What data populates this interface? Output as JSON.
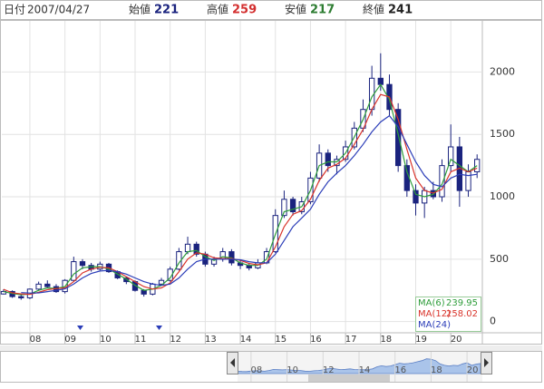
{
  "chart_data": {
    "type": "candlestick",
    "header": {
      "date_label": "日付",
      "date": "2007/04/27",
      "open_label": "始値",
      "high_label": "高値",
      "low_label": "安値",
      "close_label": "終値"
    },
    "x": [
      2007.25,
      2007.5,
      2007.75,
      2008,
      2008.25,
      2008.5,
      2008.75,
      2009,
      2009.25,
      2009.5,
      2009.75,
      2010,
      2010.25,
      2010.5,
      2010.75,
      2011,
      2011.25,
      2011.5,
      2011.75,
      2012,
      2012.25,
      2012.5,
      2012.75,
      2013,
      2013.25,
      2013.5,
      2013.75,
      2014,
      2014.25,
      2014.5,
      2014.75,
      2015,
      2015.25,
      2015.5,
      2015.75,
      2016,
      2016.25,
      2016.5,
      2016.75,
      2017,
      2017.25,
      2017.5,
      2017.75,
      2018,
      2018.25,
      2018.5,
      2018.75,
      2019,
      2019.25,
      2019.5,
      2019.75,
      2020,
      2020.25,
      2020.5,
      2020.75
    ],
    "open": [
      221,
      241,
      200,
      190,
      260,
      300,
      280,
      240,
      330,
      480,
      450,
      420,
      460,
      400,
      350,
      320,
      250,
      220,
      300,
      330,
      420,
      560,
      620,
      540,
      460,
      500,
      560,
      470,
      450,
      430,
      470,
      560,
      850,
      980,
      880,
      960,
      1150,
      1350,
      1250,
      1300,
      1400,
      1550,
      1700,
      1950,
      1900,
      1700,
      1250,
      1050,
      950,
      1050,
      1000,
      1250,
      1400,
      1050,
      1200
    ],
    "high": [
      259,
      250,
      215,
      265,
      320,
      330,
      300,
      340,
      520,
      500,
      470,
      480,
      470,
      410,
      360,
      330,
      260,
      310,
      350,
      440,
      590,
      680,
      640,
      560,
      520,
      590,
      580,
      490,
      470,
      500,
      590,
      900,
      1050,
      1000,
      1000,
      1200,
      1420,
      1380,
      1330,
      1450,
      1600,
      1780,
      2050,
      2150,
      1980,
      1750,
      1300,
      1100,
      1080,
      1120,
      1300,
      1580,
      1480,
      1260,
      1340
    ],
    "low": [
      217,
      190,
      175,
      180,
      250,
      270,
      230,
      225,
      320,
      420,
      400,
      410,
      390,
      340,
      300,
      240,
      200,
      210,
      290,
      320,
      410,
      540,
      520,
      440,
      440,
      480,
      450,
      420,
      410,
      420,
      460,
      550,
      830,
      850,
      860,
      940,
      1120,
      1200,
      1180,
      1280,
      1380,
      1520,
      1650,
      1850,
      1650,
      1200,
      1000,
      850,
      830,
      980,
      960,
      1200,
      920,
      1000,
      1150
    ],
    "close": [
      241,
      200,
      190,
      260,
      300,
      280,
      240,
      330,
      480,
      450,
      420,
      460,
      400,
      350,
      320,
      250,
      220,
      300,
      330,
      420,
      560,
      620,
      540,
      460,
      500,
      560,
      470,
      450,
      430,
      470,
      560,
      850,
      980,
      880,
      960,
      1150,
      1350,
      1250,
      1300,
      1400,
      1550,
      1700,
      1950,
      1900,
      1700,
      1250,
      1050,
      950,
      1050,
      1000,
      1250,
      1400,
      1050,
      1200,
      1300
    ],
    "color": "#1a237e",
    "series": [
      {
        "name": "MA(6)",
        "color": "#2e9d3a",
        "values": [
          239.95,
          225,
          215,
          220,
          250,
          270,
          265,
          280,
          380,
          430,
          440,
          440,
          420,
          380,
          340,
          290,
          250,
          260,
          290,
          350,
          470,
          560,
          570,
          520,
          490,
          520,
          510,
          470,
          450,
          450,
          500,
          700,
          880,
          900,
          920,
          1050,
          1250,
          1280,
          1280,
          1350,
          1480,
          1620,
          1800,
          1900,
          1780,
          1500,
          1200,
          1020,
          1000,
          1020,
          1100,
          1300,
          1250,
          1200,
          1250
        ]
      },
      {
        "name": "MA(12)",
        "color": "#d9342b",
        "values": [
          258.02,
          230,
          222,
          218,
          235,
          255,
          265,
          270,
          320,
          390,
          420,
          435,
          430,
          400,
          360,
          320,
          280,
          260,
          270,
          310,
          400,
          500,
          550,
          540,
          510,
          505,
          505,
          490,
          465,
          455,
          470,
          600,
          760,
          860,
          890,
          980,
          1130,
          1230,
          1260,
          1310,
          1420,
          1540,
          1700,
          1820,
          1800,
          1620,
          1380,
          1150,
          1050,
          1030,
          1060,
          1200,
          1230,
          1200,
          1230
        ]
      },
      {
        "name": "MA(24)",
        "color": "#2b3db8",
        "values": [
          null,
          null,
          232,
          228,
          230,
          240,
          250,
          262,
          300,
          350,
          385,
          405,
          410,
          400,
          380,
          350,
          320,
          300,
          290,
          300,
          350,
          420,
          480,
          500,
          500,
          500,
          500,
          495,
          480,
          470,
          470,
          540,
          650,
          760,
          830,
          900,
          1020,
          1120,
          1190,
          1250,
          1330,
          1420,
          1520,
          1600,
          1650,
          1560,
          1420,
          1280,
          1170,
          1100,
          1080,
          1150,
          1180,
          1170,
          1180
        ]
      }
    ],
    "xlim": [
      2007.2,
      2020.9
    ],
    "xticks": [
      {
        "value": 2008,
        "label": "08"
      },
      {
        "value": 2009,
        "label": "09"
      },
      {
        "value": 2010,
        "label": "10"
      },
      {
        "value": 2011,
        "label": "11"
      },
      {
        "value": 2012,
        "label": "12"
      },
      {
        "value": 2013,
        "label": "13"
      },
      {
        "value": 2014,
        "label": "14"
      },
      {
        "value": 2015,
        "label": "15"
      },
      {
        "value": 2016,
        "label": "16"
      },
      {
        "value": 2017,
        "label": "17"
      },
      {
        "value": 2018,
        "label": "18"
      },
      {
        "value": 2019,
        "label": "19"
      },
      {
        "value": 2020,
        "label": "20"
      }
    ],
    "ylim": [
      -90,
      2410
    ],
    "yticks": [
      0,
      500,
      1000,
      1500,
      2000
    ],
    "grid": true,
    "navigator_xlim": [
      2007.25,
      2020.75
    ],
    "navigator_ticks": [
      {
        "value": 2008,
        "label": "08"
      },
      {
        "value": 2010,
        "label": "10"
      },
      {
        "value": 2012,
        "label": "12"
      },
      {
        "value": 2014,
        "label": "14"
      },
      {
        "value": 2016,
        "label": "16"
      },
      {
        "value": 2018,
        "label": "18"
      },
      {
        "value": 2020,
        "label": "20"
      }
    ]
  }
}
